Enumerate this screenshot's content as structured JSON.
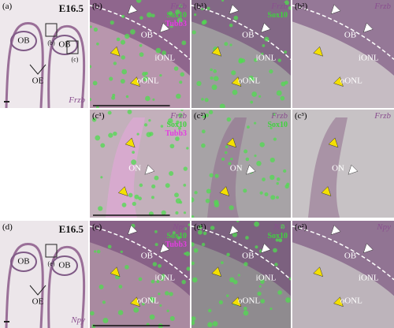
{
  "panels": [
    {
      "label": "(a)",
      "stage": "E16.5",
      "gene": "Frzb",
      "regions": [
        "OB",
        "OB",
        "OE"
      ],
      "insets": [
        "(b)",
        "(c)"
      ]
    },
    {
      "label": "(b)",
      "gene": "Frzb",
      "markers": [
        "Sox10",
        "Tubb3"
      ],
      "regions": [
        "OB",
        "iONL",
        "oONL"
      ]
    },
    {
      "label": "(b¹)",
      "gene": "Frzb",
      "markers": [
        "Sox10"
      ],
      "regions": [
        "OB",
        "iONL",
        "oONL"
      ]
    },
    {
      "label": "(b²)",
      "gene": "Frzb",
      "regions": [
        "OB",
        "iONL",
        "oONL"
      ]
    },
    {
      "label": "(c¹)",
      "gene": "Frzb",
      "markers": [
        "Sox10",
        "Tubb3"
      ],
      "regions": [
        "ON"
      ]
    },
    {
      "label": "(c²)",
      "gene": "Frzb",
      "markers": [
        "Sox10"
      ],
      "regions": [
        "ON"
      ]
    },
    {
      "label": "(c³)",
      "gene": "Frzb",
      "regions": [
        "ON"
      ]
    },
    {
      "label": "(d)",
      "stage": "E16.5",
      "gene": "Npy",
      "regions": [
        "OB",
        "OB",
        "OE"
      ],
      "insets": [
        "(e)"
      ]
    },
    {
      "label": "(e)",
      "gene": "Npy",
      "markers": [
        "Sox10",
        "Tubb3"
      ],
      "regions": [
        "OB",
        "iONL",
        "oONL"
      ]
    },
    {
      "label": "(e¹)",
      "gene": "Npy",
      "markers": [
        "Sox10"
      ],
      "regions": [
        "OB",
        "iONL",
        "oONL"
      ]
    },
    {
      "label": "(e²)",
      "gene": "Npy",
      "regions": [
        "OB",
        "iONL",
        "oONL"
      ]
    }
  ]
}
